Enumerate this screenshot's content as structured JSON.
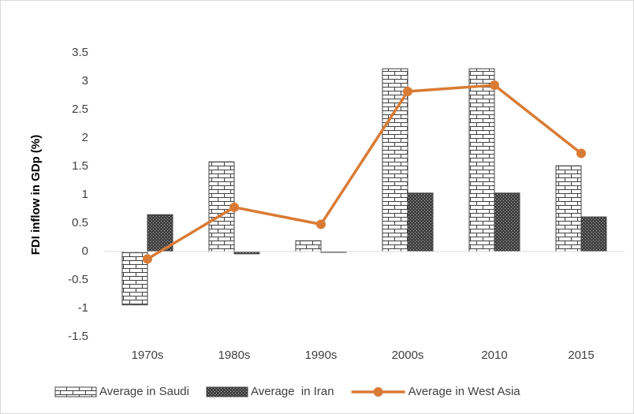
{
  "chart_data": {
    "type": "bar",
    "y_label": "FDI inflow in GDp (%)",
    "categories": [
      "1970s",
      "1980s",
      "1990s",
      "2000s",
      "2010",
      "2015"
    ],
    "series": [
      {
        "name": "Average in Saudi",
        "type": "bar",
        "color": "#404040",
        "values": [
          -0.94,
          1.58,
          0.19,
          3.22,
          3.22,
          1.51
        ]
      },
      {
        "name": "Average  in Iran",
        "type": "bar",
        "color": "#404040",
        "values": [
          0.65,
          -0.04,
          -0.01,
          1.03,
          1.03,
          0.61
        ]
      },
      {
        "name": "Average in West Asia",
        "type": "line",
        "color": "#d97b35",
        "values": [
          -0.13,
          0.78,
          0.48,
          2.82,
          2.93,
          1.73
        ]
      }
    ],
    "ylim": [
      -1.5,
      3.5
    ],
    "yticks": [
      -1.5,
      -1,
      -0.5,
      0,
      0.5,
      1,
      1.5,
      2,
      2.5,
      3,
      3.5
    ],
    "grid": false,
    "legend": "bottom"
  }
}
